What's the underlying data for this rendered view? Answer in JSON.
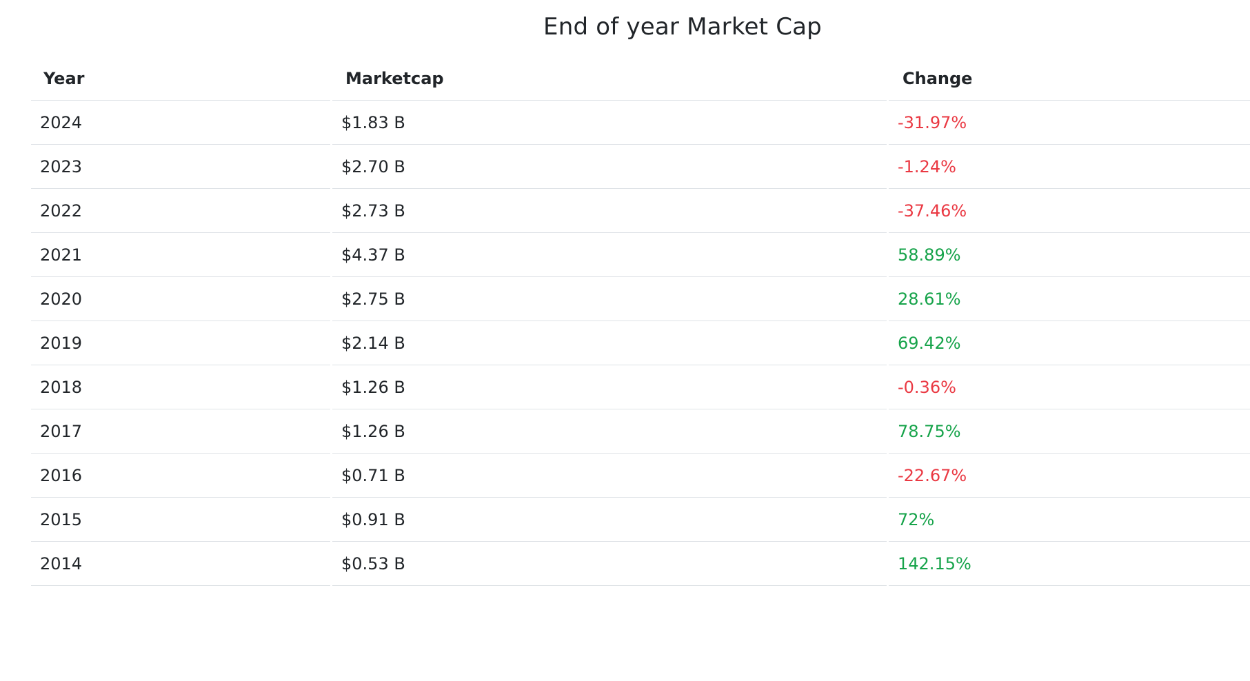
{
  "title": "End of year Market Cap",
  "columns": {
    "year": "Year",
    "marketcap": "Marketcap",
    "change": "Change"
  },
  "colors": {
    "negative": "#ea3943",
    "positive": "#16a34a",
    "text": "#212529",
    "row_border": "#dee2e6"
  },
  "rows": [
    {
      "year": "2024",
      "marketcap": "$1.83 B",
      "change": "-31.97%",
      "trend": "negative"
    },
    {
      "year": "2023",
      "marketcap": "$2.70 B",
      "change": "-1.24%",
      "trend": "negative"
    },
    {
      "year": "2022",
      "marketcap": "$2.73 B",
      "change": "-37.46%",
      "trend": "negative"
    },
    {
      "year": "2021",
      "marketcap": "$4.37 B",
      "change": "58.89%",
      "trend": "positive"
    },
    {
      "year": "2020",
      "marketcap": "$2.75 B",
      "change": "28.61%",
      "trend": "positive"
    },
    {
      "year": "2019",
      "marketcap": "$2.14 B",
      "change": "69.42%",
      "trend": "positive"
    },
    {
      "year": "2018",
      "marketcap": "$1.26 B",
      "change": "-0.36%",
      "trend": "negative"
    },
    {
      "year": "2017",
      "marketcap": "$1.26 B",
      "change": "78.75%",
      "trend": "positive"
    },
    {
      "year": "2016",
      "marketcap": "$0.71 B",
      "change": "-22.67%",
      "trend": "negative"
    },
    {
      "year": "2015",
      "marketcap": "$0.91 B",
      "change": "72%",
      "trend": "positive"
    },
    {
      "year": "2014",
      "marketcap": "$0.53 B",
      "change": "142.15%",
      "trend": "positive"
    }
  ]
}
